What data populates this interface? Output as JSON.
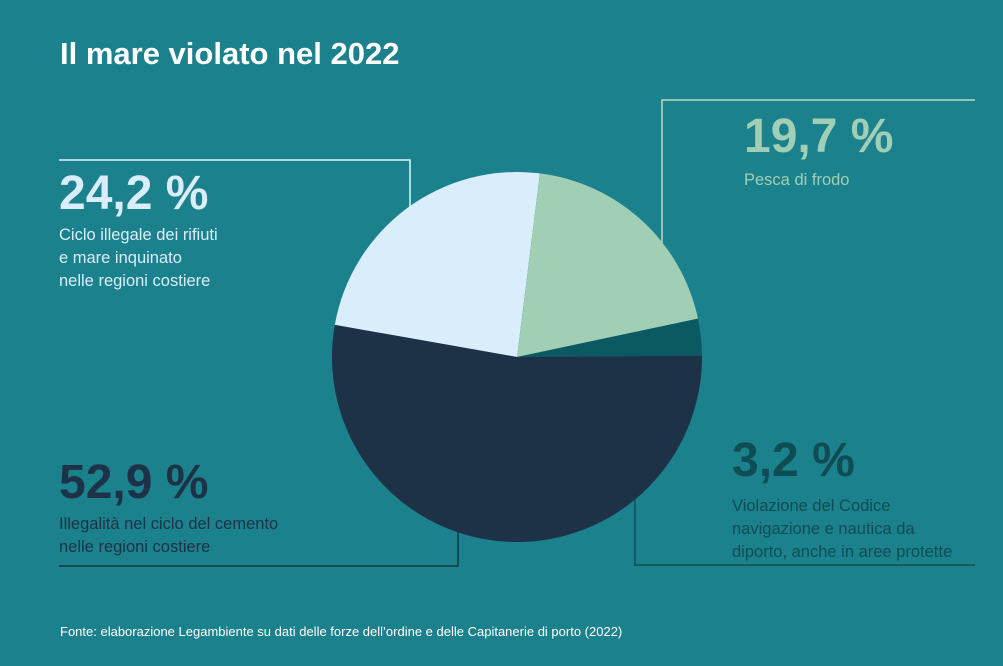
{
  "title": "Il mare violato nel 2022",
  "source": "Fonte: elaborazione Legambiente su dati delle forze dell’ordine e delle Capitanerie di porto (2022)",
  "colors": {
    "background": "#1b818c",
    "slice_rifiuti": "#d9edfb",
    "slice_pesca": "#a0cfb5",
    "slice_nautica": "#0b5a62",
    "slice_cemento": "#1d3247",
    "leader_rifiuti": "#e6f3fb",
    "leader_pesca": "#b9dcc6",
    "leader_nautica": "#0f4d55",
    "leader_cemento": "#1d3247"
  },
  "chart_data": {
    "type": "pie",
    "slices": [
      {
        "value": 24.2,
        "value_label": "24,2 %",
        "label_lines": [
          "Ciclo illegale dei rifiuti",
          "e mare inquinato",
          "nelle regioni costiere"
        ]
      },
      {
        "value": 19.7,
        "value_label": "19,7 %",
        "label_lines": [
          "Pesca di frodo"
        ]
      },
      {
        "value": 3.2,
        "value_label": "3,2 %",
        "label_lines": [
          "Violazione del Codice",
          "navigazione e nautica da",
          "diporto, anche in aree protette"
        ]
      },
      {
        "value": 52.9,
        "value_label": "52,9 %",
        "label_lines": [
          "Illegalità nel ciclo del cemento",
          "nelle regioni costiere"
        ]
      }
    ]
  }
}
